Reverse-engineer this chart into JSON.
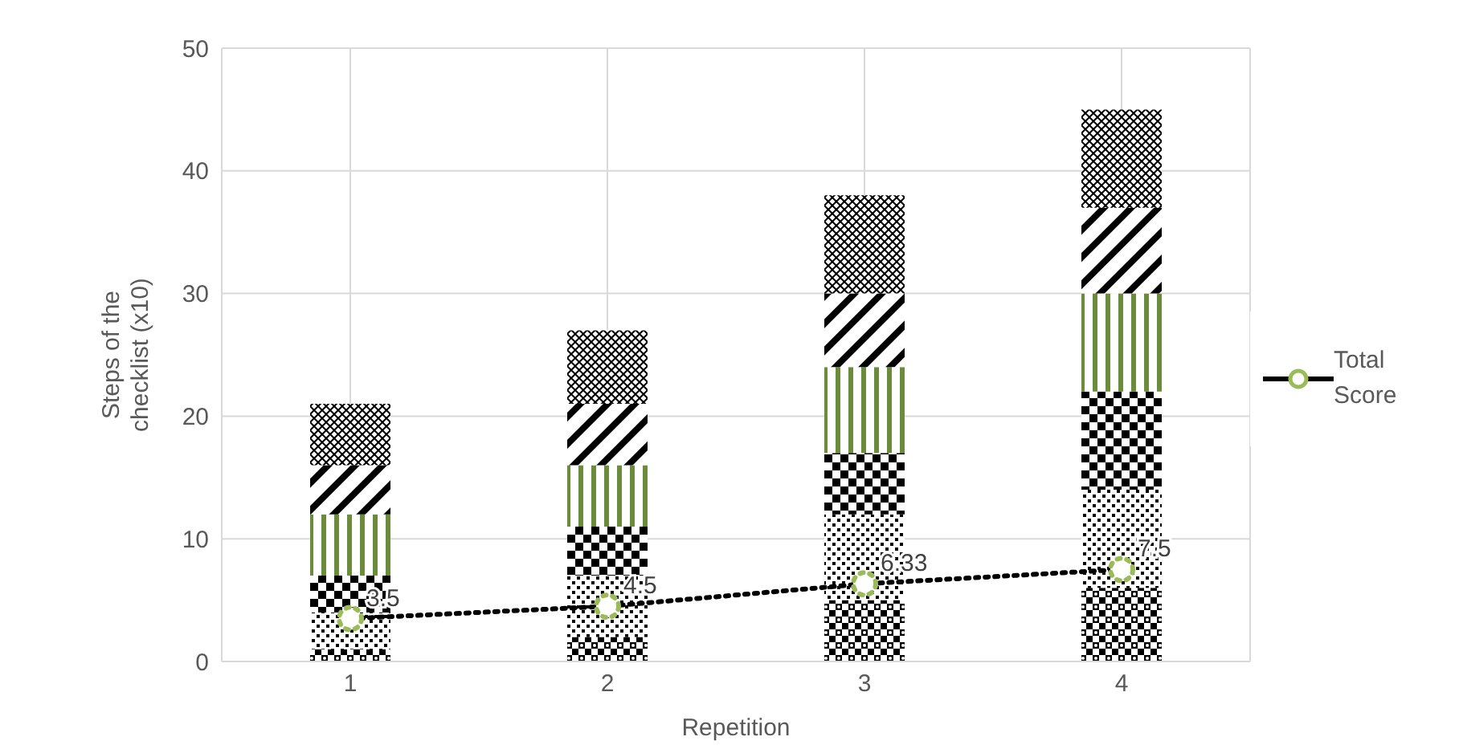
{
  "chart_data": {
    "type": "bar",
    "stacked": true,
    "xlabel": "Repetition",
    "ylabel": "Steps of the checklist (x10)",
    "categories": [
      "1",
      "2",
      "3",
      "4"
    ],
    "series": [
      {
        "color": "#000000",
        "values": [
          1,
          2,
          5,
          6
        ]
      },
      {
        "color": "#000000",
        "values": [
          3,
          5,
          7,
          8
        ]
      },
      {
        "color": "#000000",
        "values": [
          3,
          4,
          5,
          8
        ]
      },
      {
        "color": "#6b8c3a",
        "values": [
          5,
          5,
          7,
          8
        ]
      },
      {
        "color": "#000000",
        "values": [
          4,
          5,
          6,
          7
        ]
      },
      {
        "color": "#000000",
        "values": [
          5,
          6,
          8,
          8
        ]
      },
      {
        "type": "line",
        "name": "Total Score",
        "color": "#000000",
        "marker": "circle",
        "line_style": "dotted",
        "values": [
          3.5,
          4.5,
          6.33,
          7.5
        ],
        "value_labels": [
          "3.5",
          "4.5",
          "6.33",
          "7.5"
        ]
      }
    ],
    "ylim": [
      0,
      50
    ],
    "yticks": [
      0,
      10,
      20,
      30,
      40,
      50
    ],
    "grid": true,
    "legend": "right"
  }
}
